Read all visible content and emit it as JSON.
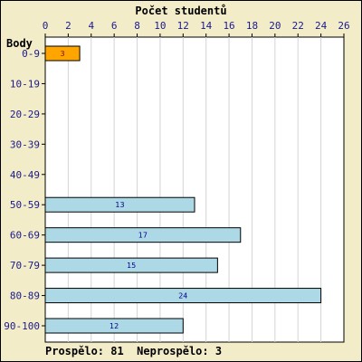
{
  "chart_data": {
    "type": "bar",
    "orientation": "horizontal",
    "title": "Počet studentů",
    "ylabel": "Body",
    "categories": [
      "0-9",
      "10-19",
      "20-29",
      "30-39",
      "40-49",
      "50-59",
      "60-69",
      "70-79",
      "80-89",
      "90-100"
    ],
    "values": [
      3,
      0,
      0,
      0,
      0,
      13,
      17,
      15,
      24,
      12
    ],
    "xlim": [
      0,
      26
    ],
    "xticks": [
      0,
      2,
      4,
      6,
      8,
      10,
      12,
      14,
      16,
      18,
      20,
      22,
      24,
      26
    ],
    "x_axis_position": "top",
    "grid": true,
    "colors": {
      "failed": "#ffa500",
      "passed": "#add8e6",
      "failed_label": "#8b0000",
      "passed_label": "#00008b",
      "background": "#f3ecc9",
      "plot_background": "#ffffff"
    },
    "failed_categories": [
      "0-9"
    ]
  },
  "footer": {
    "text": "Prospělo: 81  Neprospělo: 3"
  }
}
